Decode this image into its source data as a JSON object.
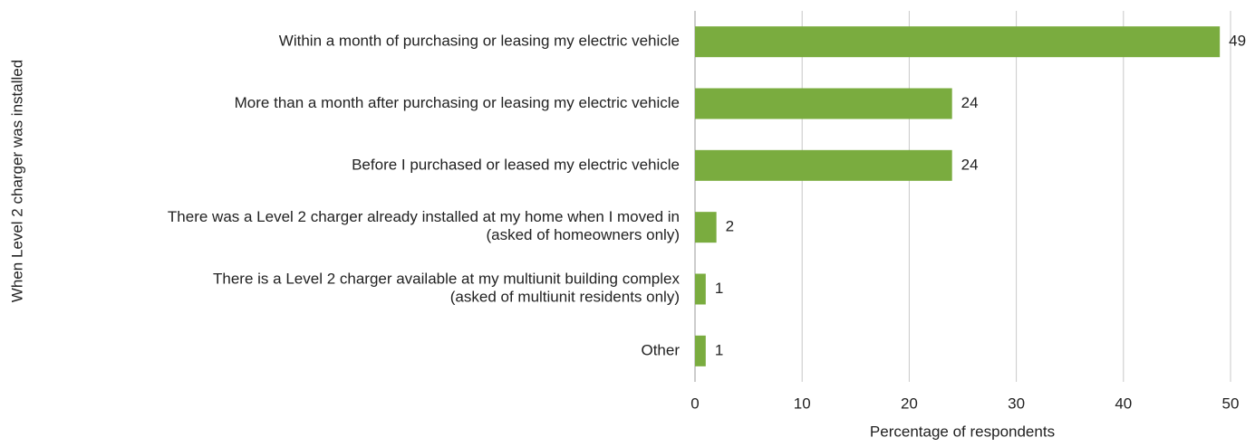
{
  "chart_data": {
    "type": "barh",
    "categories": [
      "Within a month of purchasing or leasing my electric vehicle",
      "More than a month after purchasing or leasing my electric vehicle",
      "Before I purchased or leased my electric vehicle",
      "There was a Level 2 charger already installed at my home when I moved in\n(asked of homeowners only)",
      "There is a Level 2 charger available at my multiunit building complex\n(asked of multiunit residents only)",
      "Other"
    ],
    "values": [
      49,
      24,
      24,
      2,
      1,
      1
    ],
    "color": "#7aac3f",
    "xlabel": "Percentage of respondents",
    "ylabel": "When Level 2 charger was installed",
    "xlim": [
      0,
      50
    ],
    "xticks": [
      0,
      10,
      20,
      30,
      40,
      50
    ],
    "grid": true
  }
}
